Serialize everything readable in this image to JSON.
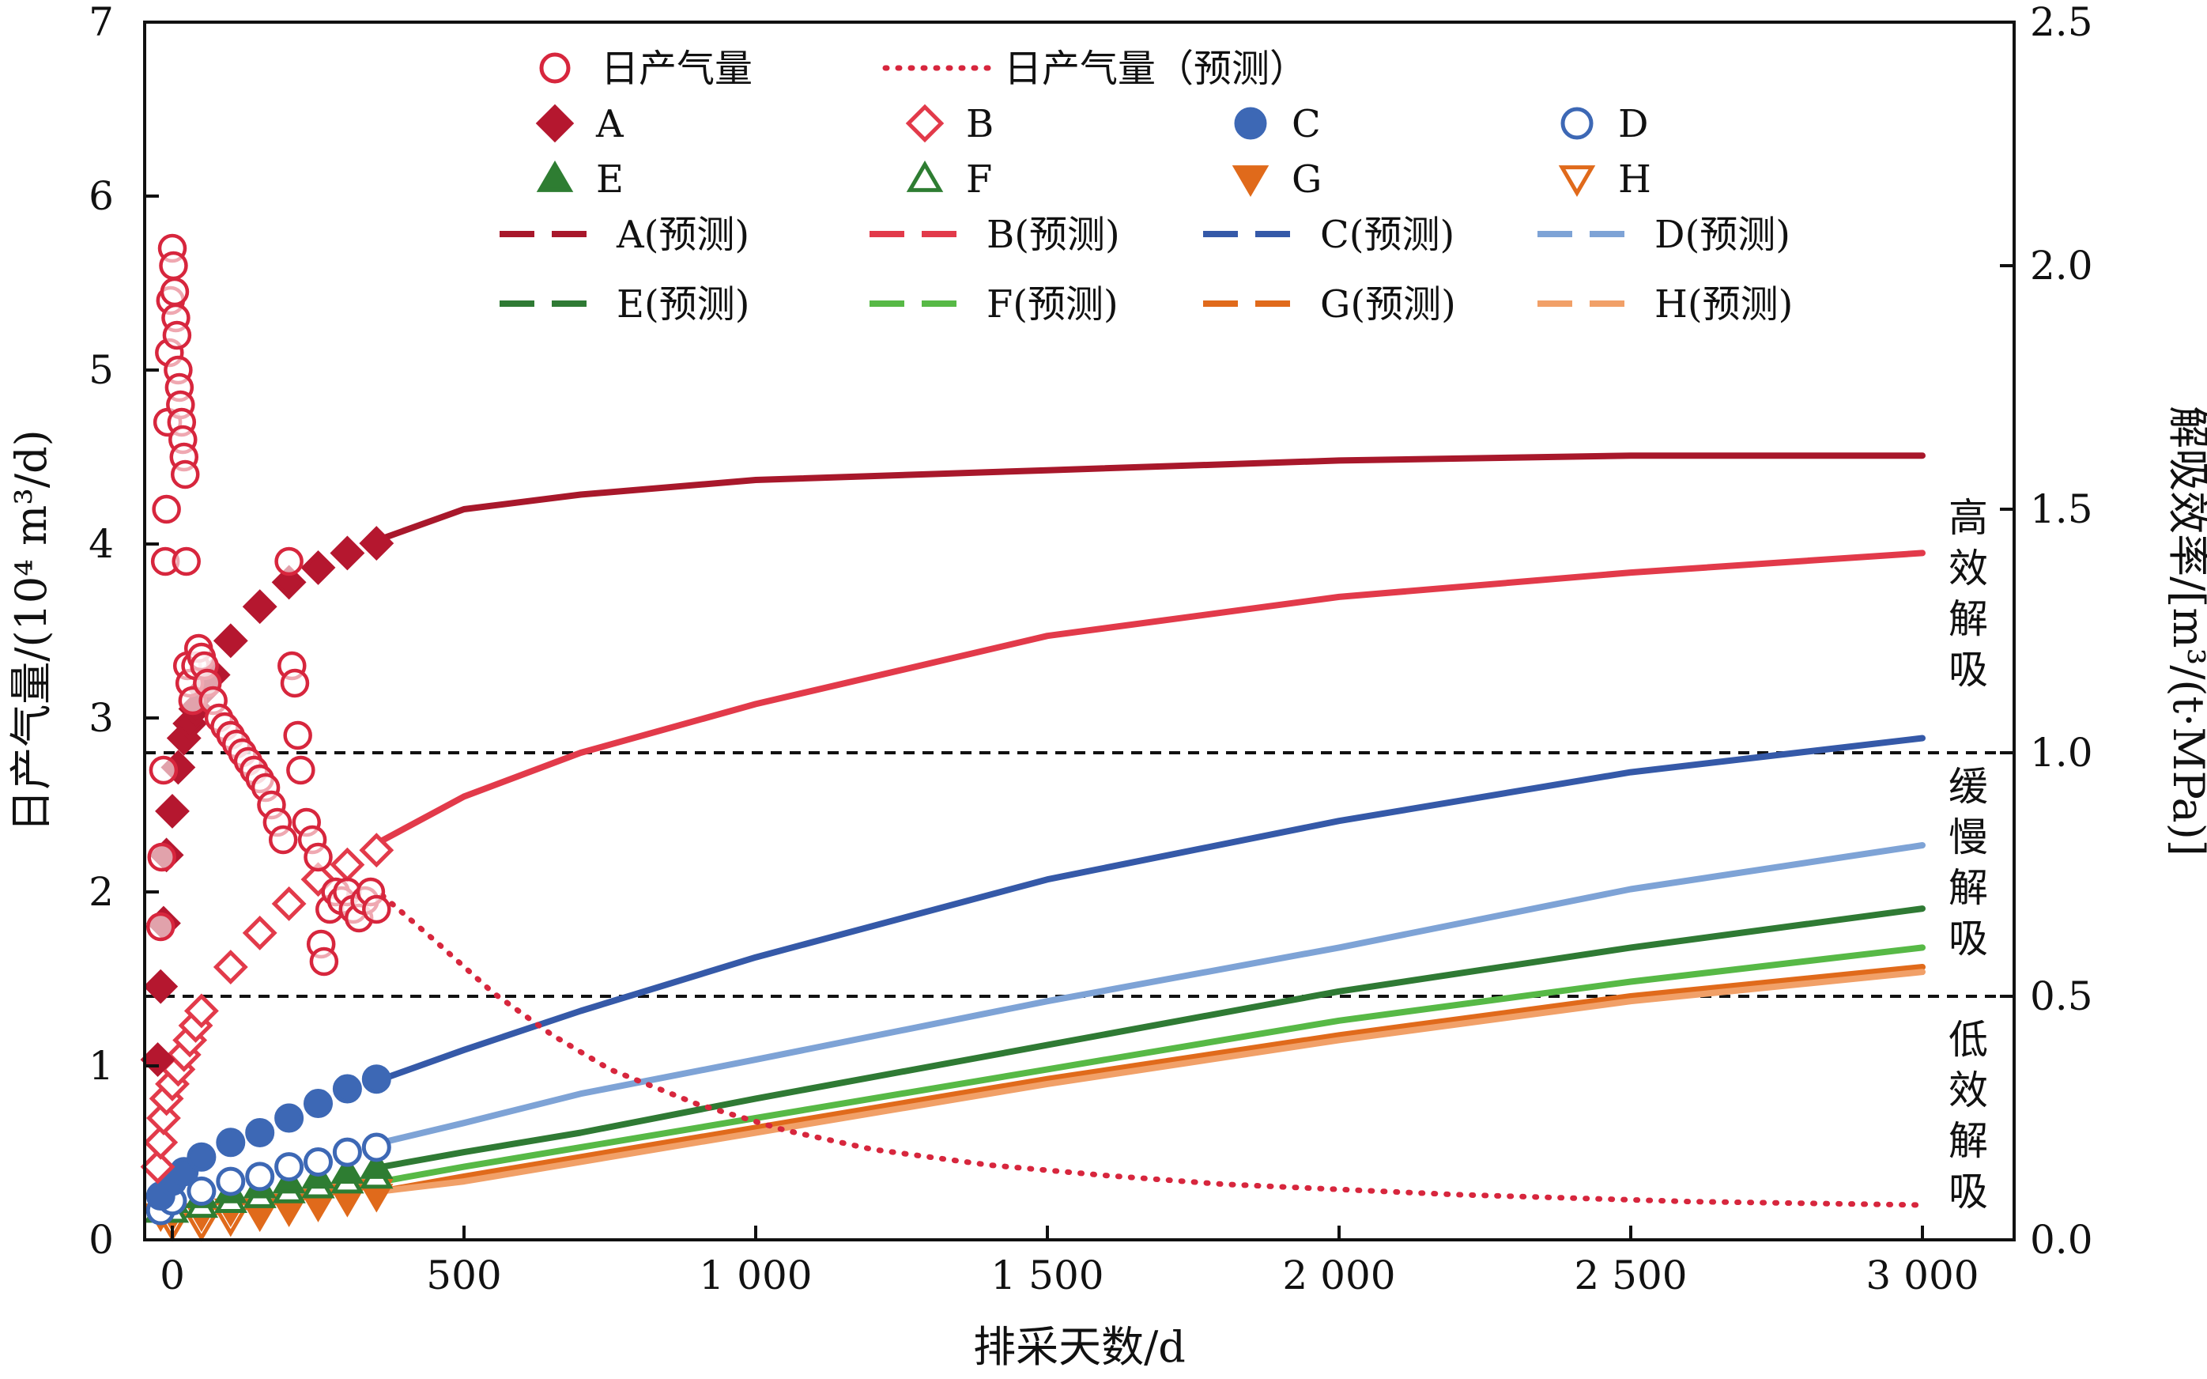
{
  "chart_data": {
    "type": "line",
    "xlabel": "排采天数/d",
    "ylabel_left": "日产气量/(10⁴ m³/d)",
    "ylabel_right": "解吸效率/[m³/(t·MPa)]",
    "xlim": [
      -50,
      3100
    ],
    "ylim_left": [
      0,
      7
    ],
    "ylim_right": [
      0,
      2.5
    ],
    "x_ticks": [
      0,
      500,
      1000,
      1500,
      2000,
      2500,
      3000
    ],
    "x_tick_labels": [
      "0",
      "500",
      "1 000",
      "1 500",
      "2 000",
      "2 500",
      "3 000"
    ],
    "y_left_ticks": [
      0,
      1,
      2,
      3,
      4,
      5,
      6,
      7
    ],
    "y_left_tick_labels": [
      "0",
      "1",
      "2",
      "3",
      "4",
      "5",
      "6",
      "7"
    ],
    "y_right_ticks": [
      0,
      0.5,
      1.0,
      1.5,
      2.0,
      2.5
    ],
    "y_right_tick_labels": [
      "0.0",
      "0.5",
      "1.0",
      "1.5",
      "2.0",
      "2.5"
    ],
    "thresholds_right_axis": [
      1.0,
      0.5
    ],
    "zones": [
      {
        "label": "高效解吸",
        "from": 1.0,
        "to": 2.5
      },
      {
        "label": "缓慢解吸",
        "from": 0.5,
        "to": 1.0
      },
      {
        "label": "低效解吸",
        "from": 0.0,
        "to": 0.5
      }
    ],
    "gas_production": {
      "name": "日产气量",
      "color": "#d7263d",
      "points": [
        [
          -20,
          1.8
        ],
        [
          -18,
          2.2
        ],
        [
          -15,
          2.7
        ],
        [
          -12,
          3.9
        ],
        [
          -10,
          4.2
        ],
        [
          -8,
          4.7
        ],
        [
          -5,
          5.1
        ],
        [
          -3,
          5.4
        ],
        [
          0,
          5.7
        ],
        [
          2,
          5.6
        ],
        [
          4,
          5.45
        ],
        [
          6,
          5.3
        ],
        [
          8,
          5.2
        ],
        [
          10,
          5.0
        ],
        [
          12,
          4.9
        ],
        [
          14,
          4.8
        ],
        [
          16,
          4.7
        ],
        [
          18,
          4.6
        ],
        [
          20,
          4.5
        ],
        [
          22,
          4.4
        ],
        [
          24,
          3.9
        ],
        [
          26,
          3.3
        ],
        [
          30,
          3.2
        ],
        [
          35,
          3.1
        ],
        [
          40,
          3.3
        ],
        [
          45,
          3.4
        ],
        [
          50,
          3.35
        ],
        [
          55,
          3.3
        ],
        [
          60,
          3.2
        ],
        [
          70,
          3.1
        ],
        [
          80,
          3.0
        ],
        [
          90,
          2.95
        ],
        [
          100,
          2.9
        ],
        [
          110,
          2.85
        ],
        [
          120,
          2.8
        ],
        [
          130,
          2.75
        ],
        [
          140,
          2.7
        ],
        [
          150,
          2.65
        ],
        [
          160,
          2.6
        ],
        [
          170,
          2.5
        ],
        [
          180,
          2.4
        ],
        [
          190,
          2.3
        ],
        [
          200,
          3.9
        ],
        [
          205,
          3.3
        ],
        [
          210,
          3.2
        ],
        [
          215,
          2.9
        ],
        [
          220,
          2.7
        ],
        [
          230,
          2.4
        ],
        [
          240,
          2.3
        ],
        [
          250,
          2.2
        ],
        [
          255,
          1.7
        ],
        [
          260,
          1.6
        ],
        [
          270,
          1.9
        ],
        [
          280,
          2.0
        ],
        [
          290,
          1.95
        ],
        [
          300,
          2.0
        ],
        [
          310,
          1.9
        ],
        [
          320,
          1.85
        ],
        [
          330,
          1.95
        ],
        [
          340,
          2.0
        ],
        [
          350,
          1.9
        ]
      ]
    },
    "gas_forecast": {
      "name": "日产气量（预测）",
      "color": "#d7263d",
      "x": [
        360,
        450,
        550,
        650,
        750,
        900,
        1050,
        1200,
        1400,
        1600,
        1800,
        2000,
        2200,
        2400,
        2600,
        2800,
        3000
      ],
      "values": [
        1.98,
        1.72,
        1.42,
        1.18,
        0.98,
        0.78,
        0.63,
        0.52,
        0.43,
        0.37,
        0.32,
        0.29,
        0.26,
        0.24,
        0.22,
        0.21,
        0.2
      ]
    },
    "desorption_series": [
      {
        "name": "A",
        "forecast_name": "A(预测)",
        "color": "#b5172f",
        "marker": "diamond",
        "filled": true,
        "points": [
          [
            -25,
            0.37
          ],
          [
            -20,
            0.52
          ],
          [
            -15,
            0.65
          ],
          [
            -10,
            0.79
          ],
          [
            0,
            0.88
          ],
          [
            10,
            0.97
          ],
          [
            20,
            1.03
          ],
          [
            30,
            1.06
          ],
          [
            40,
            1.09
          ],
          [
            55,
            1.13
          ],
          [
            70,
            1.16
          ],
          [
            100,
            1.23
          ],
          [
            150,
            1.3
          ],
          [
            200,
            1.35
          ],
          [
            250,
            1.38
          ],
          [
            300,
            1.41
          ],
          [
            350,
            1.43
          ]
        ],
        "forecast_x": [
          360,
          500,
          700,
          1000,
          1500,
          2000,
          2500,
          3000
        ],
        "forecast_values": [
          1.44,
          1.5,
          1.53,
          1.56,
          1.58,
          1.6,
          1.61,
          1.61
        ]
      },
      {
        "name": "B",
        "forecast_name": "B(预测)",
        "color": "#e23a4a",
        "marker": "diamond",
        "filled": false,
        "points": [
          [
            -25,
            0.15
          ],
          [
            -20,
            0.2
          ],
          [
            -15,
            0.25
          ],
          [
            -10,
            0.29
          ],
          [
            0,
            0.32
          ],
          [
            10,
            0.35
          ],
          [
            20,
            0.38
          ],
          [
            30,
            0.41
          ],
          [
            40,
            0.44
          ],
          [
            50,
            0.47
          ],
          [
            100,
            0.56
          ],
          [
            150,
            0.63
          ],
          [
            200,
            0.69
          ],
          [
            250,
            0.74
          ],
          [
            300,
            0.77
          ],
          [
            350,
            0.8
          ]
        ],
        "forecast_x": [
          360,
          500,
          700,
          1000,
          1500,
          2000,
          2500,
          3000
        ],
        "forecast_values": [
          0.82,
          0.91,
          1.0,
          1.1,
          1.24,
          1.32,
          1.37,
          1.41
        ]
      },
      {
        "name": "C",
        "forecast_name": "C(预测)",
        "color": "#3d68b5",
        "marker": "circle",
        "filled": true,
        "points": [
          [
            -20,
            0.09
          ],
          [
            0,
            0.12
          ],
          [
            20,
            0.14
          ],
          [
            50,
            0.17
          ],
          [
            100,
            0.2
          ],
          [
            150,
            0.22
          ],
          [
            200,
            0.25
          ],
          [
            250,
            0.28
          ],
          [
            300,
            0.31
          ],
          [
            350,
            0.33
          ]
        ],
        "forecast_x": [
          360,
          500,
          700,
          1000,
          1500,
          2000,
          2500,
          3000
        ],
        "forecast_values": [
          0.33,
          0.39,
          0.47,
          0.58,
          0.74,
          0.86,
          0.96,
          1.03
        ]
      },
      {
        "name": "D",
        "forecast_name": "D(预测)",
        "color": "#3d68b5",
        "marker": "circle",
        "filled": false,
        "points": [
          [
            -20,
            0.06
          ],
          [
            0,
            0.08
          ],
          [
            50,
            0.1
          ],
          [
            100,
            0.12
          ],
          [
            150,
            0.13
          ],
          [
            200,
            0.15
          ],
          [
            250,
            0.16
          ],
          [
            300,
            0.18
          ],
          [
            350,
            0.19
          ]
        ],
        "forecast_x": [
          360,
          500,
          700,
          1000,
          1500,
          2000,
          2500,
          3000
        ],
        "forecast_values": [
          0.2,
          0.24,
          0.3,
          0.37,
          0.49,
          0.6,
          0.72,
          0.81
        ]
      },
      {
        "name": "E",
        "forecast_name": "E(预测)",
        "color": "#2e7d32",
        "marker": "triangle-up",
        "filled": true,
        "points": [
          [
            -20,
            0.08
          ],
          [
            0,
            0.08
          ],
          [
            50,
            0.09
          ],
          [
            100,
            0.1
          ],
          [
            150,
            0.11
          ],
          [
            200,
            0.12
          ],
          [
            250,
            0.13
          ],
          [
            300,
            0.14
          ],
          [
            350,
            0.15
          ]
        ],
        "forecast_x": [
          360,
          500,
          700,
          1000,
          1500,
          2000,
          2500,
          3000
        ],
        "forecast_values": [
          0.15,
          0.18,
          0.22,
          0.29,
          0.4,
          0.51,
          0.6,
          0.68
        ]
      },
      {
        "name": "F",
        "forecast_name": "F(预测)",
        "color": "#2e7d32",
        "marker": "triangle-up",
        "filled": false,
        "points": [
          [
            -20,
            0.06
          ],
          [
            0,
            0.06
          ],
          [
            50,
            0.07
          ],
          [
            100,
            0.08
          ],
          [
            150,
            0.09
          ],
          [
            200,
            0.1
          ],
          [
            250,
            0.11
          ],
          [
            300,
            0.12
          ],
          [
            350,
            0.13
          ]
        ],
        "forecast_x": [
          360,
          500,
          700,
          1000,
          1500,
          2000,
          2500,
          3000
        ],
        "forecast_values": [
          0.12,
          0.15,
          0.19,
          0.25,
          0.35,
          0.45,
          0.53,
          0.6
        ]
      },
      {
        "name": "G",
        "forecast_name": "G(预测)",
        "color": "#e06a1b",
        "marker": "triangle-down",
        "filled": true,
        "points": [
          [
            -20,
            0.05
          ],
          [
            0,
            0.05
          ],
          [
            50,
            0.05
          ],
          [
            100,
            0.06
          ],
          [
            150,
            0.06
          ],
          [
            200,
            0.07
          ],
          [
            250,
            0.08
          ],
          [
            300,
            0.09
          ],
          [
            350,
            0.1
          ]
        ],
        "forecast_x": [
          360,
          500,
          700,
          1000,
          1500,
          2000,
          2500,
          3000
        ],
        "forecast_values": [
          0.1,
          0.13,
          0.17,
          0.23,
          0.33,
          0.42,
          0.5,
          0.56
        ]
      },
      {
        "name": "H",
        "forecast_name": "H(预测)",
        "color": "#e06a1b",
        "marker": "triangle-down",
        "filled": false,
        "points": [
          [
            0,
            0.03
          ],
          [
            50,
            0.03
          ],
          [
            100,
            0.04
          ],
          [
            150,
            0.05
          ],
          [
            200,
            0.06
          ],
          [
            250,
            0.07
          ],
          [
            300,
            0.08
          ],
          [
            350,
            0.09
          ]
        ],
        "forecast_x": [
          360,
          500,
          700,
          1000,
          1500,
          2000,
          2500,
          3000
        ],
        "forecast_values": [
          0.1,
          0.12,
          0.16,
          0.22,
          0.32,
          0.41,
          0.49,
          0.55
        ]
      }
    ],
    "forecast_colors": {
      "A": "#a8182b",
      "B": "#e23a4a",
      "C": "#3559a8",
      "D": "#7ea3d6",
      "E": "#2f7a34",
      "F": "#57b946",
      "G": "#e06a1b",
      "H": "#f1a068"
    }
  }
}
